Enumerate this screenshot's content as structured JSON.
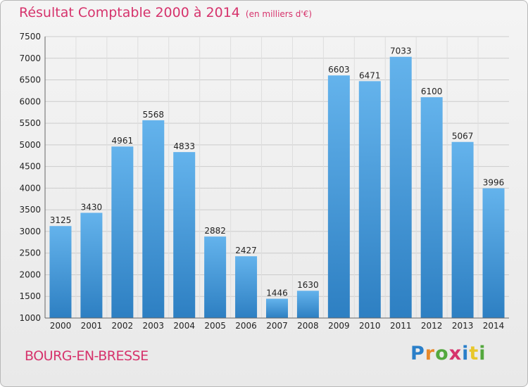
{
  "title": "Résultat Comptable 2000 à 2014",
  "unit": "(en milliers d'€)",
  "location": "BOURG-EN-BRESSE",
  "logo": {
    "text": "Proxiti",
    "letters": [
      "P",
      "r",
      "o",
      "x",
      "i",
      "t",
      "i"
    ]
  },
  "colors": {
    "title": "#d6336c",
    "bar_light": "#64b3ec",
    "bar_dark": "#2d7fc2",
    "grid": "#cccccc"
  },
  "chart_data": {
    "type": "bar",
    "title": "Résultat Comptable 2000 à 2014",
    "subtitle": "(en milliers d'€)",
    "xlabel": "",
    "ylabel": "",
    "categories": [
      "2000",
      "2001",
      "2002",
      "2003",
      "2004",
      "2005",
      "2006",
      "2007",
      "2008",
      "2009",
      "2010",
      "2011",
      "2012",
      "2013",
      "2014"
    ],
    "values": [
      3125,
      3430,
      4961,
      5568,
      4833,
      2882,
      2427,
      1446,
      1630,
      6603,
      6471,
      7033,
      6100,
      5067,
      3996
    ],
    "ylim": [
      1000,
      7500
    ],
    "yticks": [
      1000,
      1500,
      2000,
      2500,
      3000,
      3500,
      4000,
      4500,
      5000,
      5500,
      6000,
      6500,
      7000,
      7500
    ],
    "grid": true
  }
}
